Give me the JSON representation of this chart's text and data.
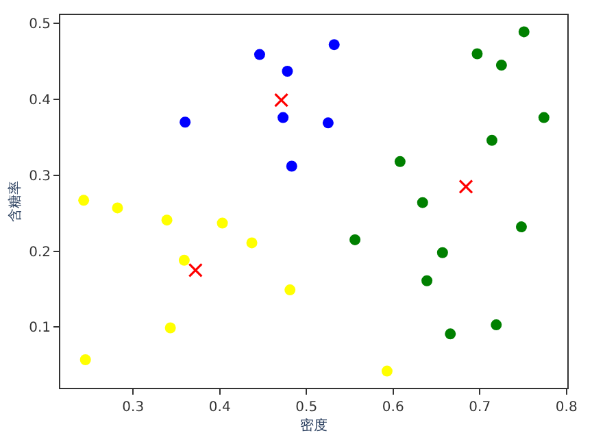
{
  "chart_data": {
    "type": "scatter",
    "xlabel": "密度",
    "ylabel": "含糖率",
    "xlim": [
      0.216,
      0.801
    ],
    "ylim": [
      0.02,
      0.511
    ],
    "xticks": [
      0.3,
      0.4,
      0.5,
      0.6,
      0.7,
      0.8
    ],
    "yticks": [
      0.1,
      0.2,
      0.3,
      0.4,
      0.5
    ],
    "series": [
      {
        "color": "#0000ff",
        "marker": "circle",
        "x": [
          0.36,
          0.483,
          0.478,
          0.525,
          0.532,
          0.473,
          0.446
        ],
        "values": [
          0.37,
          0.312,
          0.437,
          0.369,
          0.472,
          0.376,
          0.459
        ]
      },
      {
        "color": "#ffff00",
        "marker": "circle",
        "x": [
          0.403,
          0.481,
          0.437,
          0.243,
          0.245,
          0.343,
          0.593,
          0.359,
          0.339,
          0.282
        ],
        "values": [
          0.237,
          0.149,
          0.211,
          0.267,
          0.057,
          0.099,
          0.042,
          0.188,
          0.241,
          0.257
        ]
      },
      {
        "color": "#008000",
        "marker": "circle",
        "x": [
          0.697,
          0.774,
          0.634,
          0.608,
          0.556,
          0.666,
          0.639,
          0.657,
          0.719,
          0.748,
          0.714,
          0.751,
          0.725
        ],
        "values": [
          0.46,
          0.376,
          0.264,
          0.318,
          0.215,
          0.091,
          0.161,
          0.198,
          0.103,
          0.232,
          0.346,
          0.489,
          0.445
        ]
      },
      {
        "color": "#ff0000",
        "marker": "cross",
        "x": [
          0.471,
          0.372,
          0.684
        ],
        "values": [
          0.399,
          0.175,
          0.285
        ]
      }
    ]
  }
}
